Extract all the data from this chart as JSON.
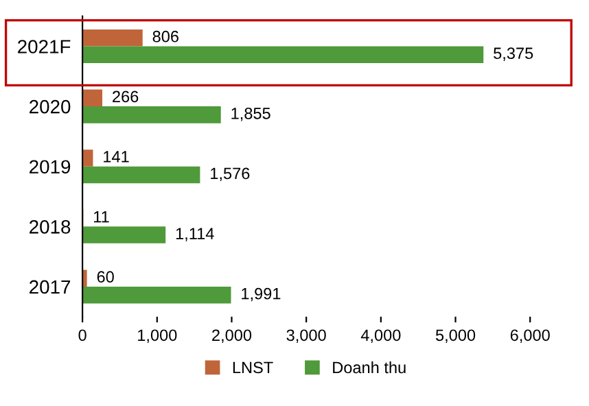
{
  "chart_data": {
    "type": "bar",
    "orientation": "horizontal",
    "categories": [
      "2021F",
      "2020",
      "2019",
      "2018",
      "2017"
    ],
    "series": [
      {
        "name": "LNST",
        "color": "#c0653a",
        "values": [
          806,
          266,
          141,
          11,
          60
        ],
        "value_labels": [
          "806",
          "266",
          "141",
          "11",
          "60"
        ]
      },
      {
        "name": "Doanh thu",
        "color": "#4f9a3a",
        "values": [
          5375,
          1855,
          1576,
          1114,
          1991
        ],
        "value_labels": [
          "5,375",
          "1,855",
          "1,576",
          "1,114",
          "1,991"
        ]
      }
    ],
    "xlim": [
      0,
      6000
    ],
    "xticks": [
      {
        "value": 0,
        "label": "0"
      },
      {
        "value": 1000,
        "label": "1,000"
      },
      {
        "value": 2000,
        "label": "2,000"
      },
      {
        "value": 3000,
        "label": "3,000"
      },
      {
        "value": 4000,
        "label": "4,000"
      },
      {
        "value": 5000,
        "label": "5,000"
      },
      {
        "value": 6000,
        "label": "6,000"
      }
    ],
    "legend": "bottom",
    "grid": false
  }
}
